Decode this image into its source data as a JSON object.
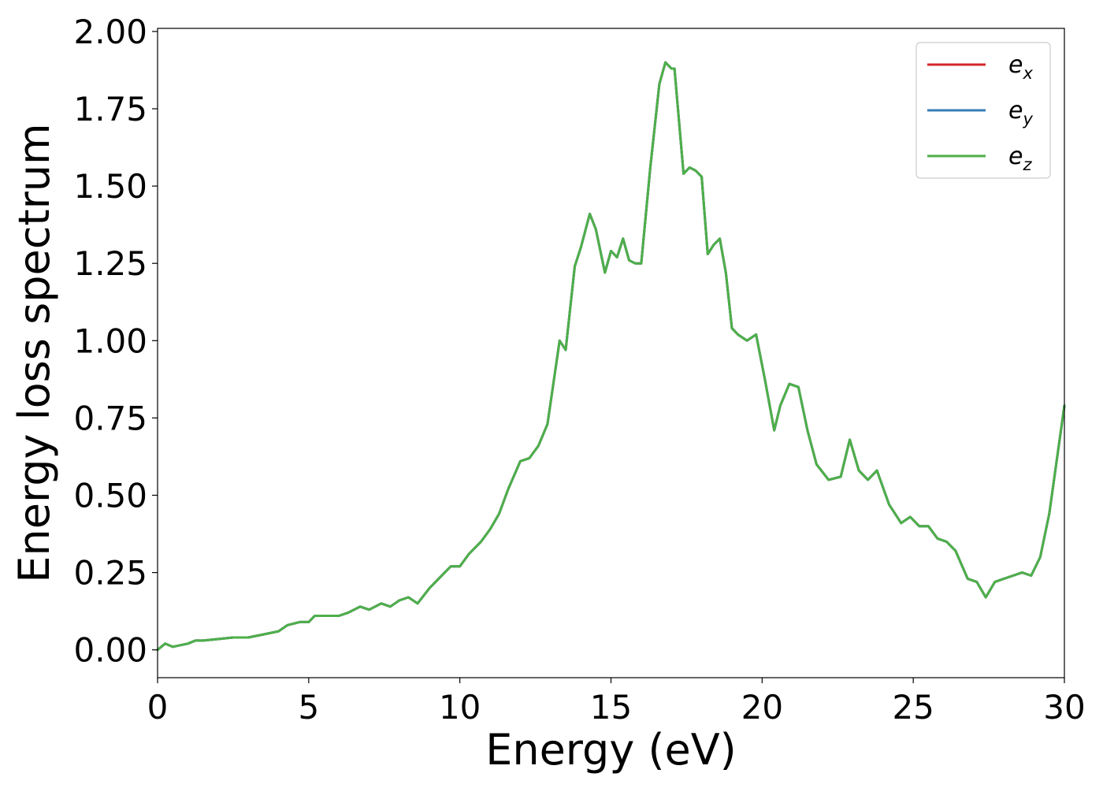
{
  "chart_data": {
    "type": "line",
    "xlabel": "Energy (eV)",
    "ylabel": "Energy loss spectrum",
    "xlim": [
      0,
      30
    ],
    "ylim": [
      -0.09,
      2.01
    ],
    "xticks": [
      0,
      5,
      10,
      15,
      20,
      25,
      30
    ],
    "xtick_labels": [
      "0",
      "5",
      "10",
      "15",
      "20",
      "25",
      "30"
    ],
    "yticks": [
      0.0,
      0.25,
      0.5,
      0.75,
      1.0,
      1.25,
      1.5,
      1.75,
      2.0
    ],
    "ytick_labels": [
      "0.00",
      "0.25",
      "0.50",
      "0.75",
      "1.00",
      "1.25",
      "1.50",
      "1.75",
      "2.00"
    ],
    "grid": false,
    "legend_position": "top-right",
    "series": [
      {
        "name": "e",
        "subscript": "x",
        "color": "#d62728",
        "x": [
          0,
          0.25,
          0.5,
          1.0,
          1.25,
          1.5,
          2.0,
          2.5,
          3.0,
          3.5,
          4.0,
          4.3,
          4.7,
          5.0,
          5.2,
          5.5,
          6.0,
          6.3,
          6.7,
          7.0,
          7.4,
          7.7,
          8.0,
          8.3,
          8.6,
          9.0,
          9.3,
          9.7,
          10.0,
          10.3,
          10.7,
          11.0,
          11.3,
          11.6,
          12.0,
          12.3,
          12.6,
          12.9,
          13.3,
          13.5,
          13.8,
          14.0,
          14.3,
          14.5,
          14.8,
          15.0,
          15.2,
          15.4,
          15.6,
          15.8,
          16.0,
          16.3,
          16.6,
          16.8,
          17.0,
          17.1,
          17.4,
          17.6,
          17.8,
          18.0,
          18.2,
          18.4,
          18.6,
          18.8,
          19.0,
          19.2,
          19.5,
          19.8,
          20.1,
          20.4,
          20.6,
          20.9,
          21.2,
          21.5,
          21.8,
          22.2,
          22.6,
          22.9,
          23.2,
          23.5,
          23.8,
          24.2,
          24.6,
          24.9,
          25.2,
          25.5,
          25.8,
          26.1,
          26.4,
          26.8,
          27.1,
          27.4,
          27.7,
          28.0,
          28.3,
          28.6,
          28.9,
          29.2,
          29.5,
          30.0
        ],
        "y": [
          0.0,
          0.02,
          0.01,
          0.02,
          0.03,
          0.03,
          0.035,
          0.04,
          0.04,
          0.05,
          0.06,
          0.08,
          0.09,
          0.09,
          0.11,
          0.11,
          0.11,
          0.12,
          0.14,
          0.13,
          0.15,
          0.14,
          0.16,
          0.17,
          0.15,
          0.2,
          0.23,
          0.27,
          0.27,
          0.31,
          0.35,
          0.39,
          0.44,
          0.52,
          0.61,
          0.62,
          0.66,
          0.73,
          1.0,
          0.97,
          1.24,
          1.3,
          1.41,
          1.36,
          1.22,
          1.29,
          1.27,
          1.33,
          1.26,
          1.25,
          1.25,
          1.56,
          1.83,
          1.9,
          1.88,
          1.88,
          1.54,
          1.56,
          1.55,
          1.53,
          1.28,
          1.31,
          1.33,
          1.22,
          1.04,
          1.02,
          1.0,
          1.02,
          0.87,
          0.71,
          0.79,
          0.86,
          0.85,
          0.71,
          0.6,
          0.55,
          0.56,
          0.68,
          0.58,
          0.55,
          0.58,
          0.47,
          0.41,
          0.43,
          0.4,
          0.4,
          0.36,
          0.35,
          0.32,
          0.23,
          0.22,
          0.17,
          0.22,
          0.23,
          0.24,
          0.25,
          0.24,
          0.3,
          0.44,
          0.79
        ]
      },
      {
        "name": "e",
        "subscript": "y",
        "color": "#377eb8",
        "x": [
          0,
          0.25,
          0.5,
          1.0,
          1.25,
          1.5,
          2.0,
          2.5,
          3.0,
          3.5,
          4.0,
          4.3,
          4.7,
          5.0,
          5.2,
          5.5,
          6.0,
          6.3,
          6.7,
          7.0,
          7.4,
          7.7,
          8.0,
          8.3,
          8.6,
          9.0,
          9.3,
          9.7,
          10.0,
          10.3,
          10.7,
          11.0,
          11.3,
          11.6,
          12.0,
          12.3,
          12.6,
          12.9,
          13.3,
          13.5,
          13.8,
          14.0,
          14.3,
          14.5,
          14.8,
          15.0,
          15.2,
          15.4,
          15.6,
          15.8,
          16.0,
          16.3,
          16.6,
          16.8,
          17.0,
          17.1,
          17.4,
          17.6,
          17.8,
          18.0,
          18.2,
          18.4,
          18.6,
          18.8,
          19.0,
          19.2,
          19.5,
          19.8,
          20.1,
          20.4,
          20.6,
          20.9,
          21.2,
          21.5,
          21.8,
          22.2,
          22.6,
          22.9,
          23.2,
          23.5,
          23.8,
          24.2,
          24.6,
          24.9,
          25.2,
          25.5,
          25.8,
          26.1,
          26.4,
          26.8,
          27.1,
          27.4,
          27.7,
          28.0,
          28.3,
          28.6,
          28.9,
          29.2,
          29.5,
          30.0
        ],
        "y": [
          0.0,
          0.02,
          0.01,
          0.02,
          0.03,
          0.03,
          0.035,
          0.04,
          0.04,
          0.05,
          0.06,
          0.08,
          0.09,
          0.09,
          0.11,
          0.11,
          0.11,
          0.12,
          0.14,
          0.13,
          0.15,
          0.14,
          0.16,
          0.17,
          0.15,
          0.2,
          0.23,
          0.27,
          0.27,
          0.31,
          0.35,
          0.39,
          0.44,
          0.52,
          0.61,
          0.62,
          0.66,
          0.73,
          1.0,
          0.97,
          1.24,
          1.3,
          1.41,
          1.36,
          1.22,
          1.29,
          1.27,
          1.33,
          1.26,
          1.25,
          1.25,
          1.56,
          1.83,
          1.9,
          1.88,
          1.88,
          1.54,
          1.56,
          1.55,
          1.53,
          1.28,
          1.31,
          1.33,
          1.22,
          1.04,
          1.02,
          1.0,
          1.02,
          0.87,
          0.71,
          0.79,
          0.86,
          0.85,
          0.71,
          0.6,
          0.55,
          0.56,
          0.68,
          0.58,
          0.55,
          0.58,
          0.47,
          0.41,
          0.43,
          0.4,
          0.4,
          0.36,
          0.35,
          0.32,
          0.23,
          0.22,
          0.17,
          0.22,
          0.23,
          0.24,
          0.25,
          0.24,
          0.3,
          0.44,
          0.79
        ]
      },
      {
        "name": "e",
        "subscript": "z",
        "color": "#4daf4a",
        "x": [
          0,
          0.25,
          0.5,
          1.0,
          1.25,
          1.5,
          2.0,
          2.5,
          3.0,
          3.5,
          4.0,
          4.3,
          4.7,
          5.0,
          5.2,
          5.5,
          6.0,
          6.3,
          6.7,
          7.0,
          7.4,
          7.7,
          8.0,
          8.3,
          8.6,
          9.0,
          9.3,
          9.7,
          10.0,
          10.3,
          10.7,
          11.0,
          11.3,
          11.6,
          12.0,
          12.3,
          12.6,
          12.9,
          13.3,
          13.5,
          13.8,
          14.0,
          14.3,
          14.5,
          14.8,
          15.0,
          15.2,
          15.4,
          15.6,
          15.8,
          16.0,
          16.3,
          16.6,
          16.8,
          17.0,
          17.1,
          17.4,
          17.6,
          17.8,
          18.0,
          18.2,
          18.4,
          18.6,
          18.8,
          19.0,
          19.2,
          19.5,
          19.8,
          20.1,
          20.4,
          20.6,
          20.9,
          21.2,
          21.5,
          21.8,
          22.2,
          22.6,
          22.9,
          23.2,
          23.5,
          23.8,
          24.2,
          24.6,
          24.9,
          25.2,
          25.5,
          25.8,
          26.1,
          26.4,
          26.8,
          27.1,
          27.4,
          27.7,
          28.0,
          28.3,
          28.6,
          28.9,
          29.2,
          29.5,
          30.0
        ],
        "y": [
          0.0,
          0.02,
          0.01,
          0.02,
          0.03,
          0.03,
          0.035,
          0.04,
          0.04,
          0.05,
          0.06,
          0.08,
          0.09,
          0.09,
          0.11,
          0.11,
          0.11,
          0.12,
          0.14,
          0.13,
          0.15,
          0.14,
          0.16,
          0.17,
          0.15,
          0.2,
          0.23,
          0.27,
          0.27,
          0.31,
          0.35,
          0.39,
          0.44,
          0.52,
          0.61,
          0.62,
          0.66,
          0.73,
          1.0,
          0.97,
          1.24,
          1.3,
          1.41,
          1.36,
          1.22,
          1.29,
          1.27,
          1.33,
          1.26,
          1.25,
          1.25,
          1.56,
          1.83,
          1.9,
          1.88,
          1.88,
          1.54,
          1.56,
          1.55,
          1.53,
          1.28,
          1.31,
          1.33,
          1.22,
          1.04,
          1.02,
          1.0,
          1.02,
          0.87,
          0.71,
          0.79,
          0.86,
          0.85,
          0.71,
          0.6,
          0.55,
          0.56,
          0.68,
          0.58,
          0.55,
          0.58,
          0.47,
          0.41,
          0.43,
          0.4,
          0.4,
          0.36,
          0.35,
          0.32,
          0.23,
          0.22,
          0.17,
          0.22,
          0.23,
          0.24,
          0.25,
          0.24,
          0.3,
          0.44,
          0.79
        ]
      }
    ]
  }
}
